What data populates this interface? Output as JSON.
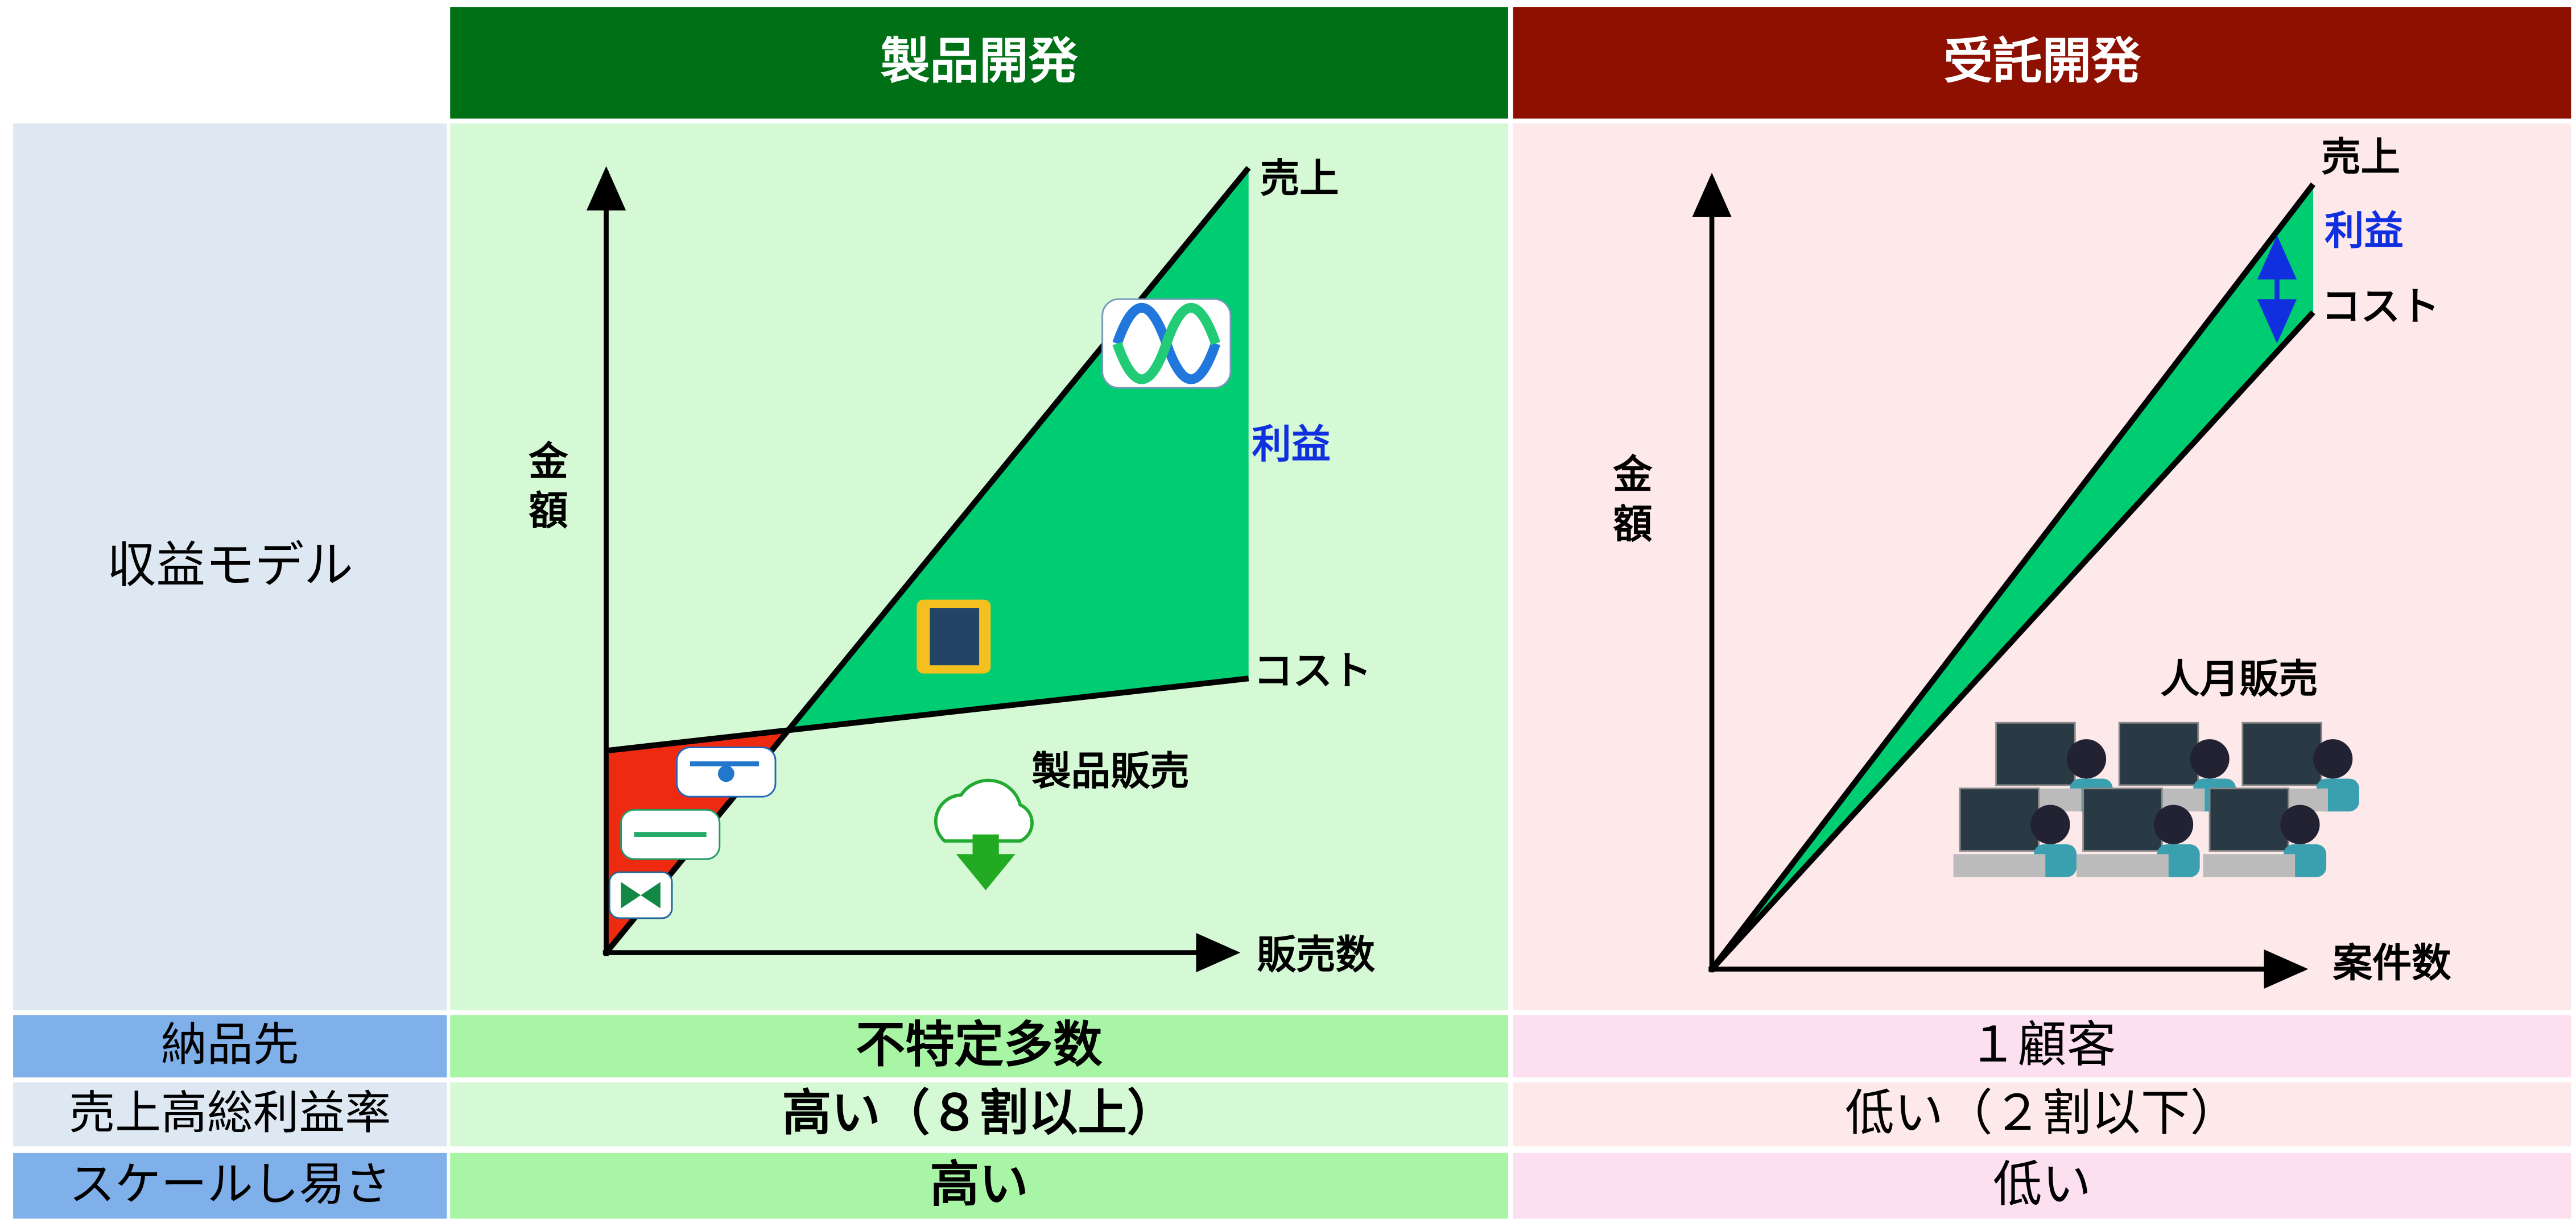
{
  "columns": [
    "製品開発",
    "受託開発"
  ],
  "row_label": "収益モデル",
  "product_chart": {
    "y_label": "金額",
    "x_label": "販売数",
    "sales_label": "売上",
    "profit_label": "利益",
    "cost_label": "コスト",
    "note": "製品販売"
  },
  "contract_chart": {
    "y_label": "金額",
    "x_label": "案件数",
    "sales_label": "売上",
    "profit_label": "利益",
    "cost_label": "コスト",
    "note": "人月販売"
  },
  "table": {
    "rows": [
      [
        "納品先",
        "不特定多数",
        "１顧客"
      ],
      [
        "売上高総利益率",
        "高い（８割以上）",
        "低い（２割以下）"
      ],
      [
        "スケールし易さ",
        "高い",
        "低い"
      ]
    ]
  }
}
